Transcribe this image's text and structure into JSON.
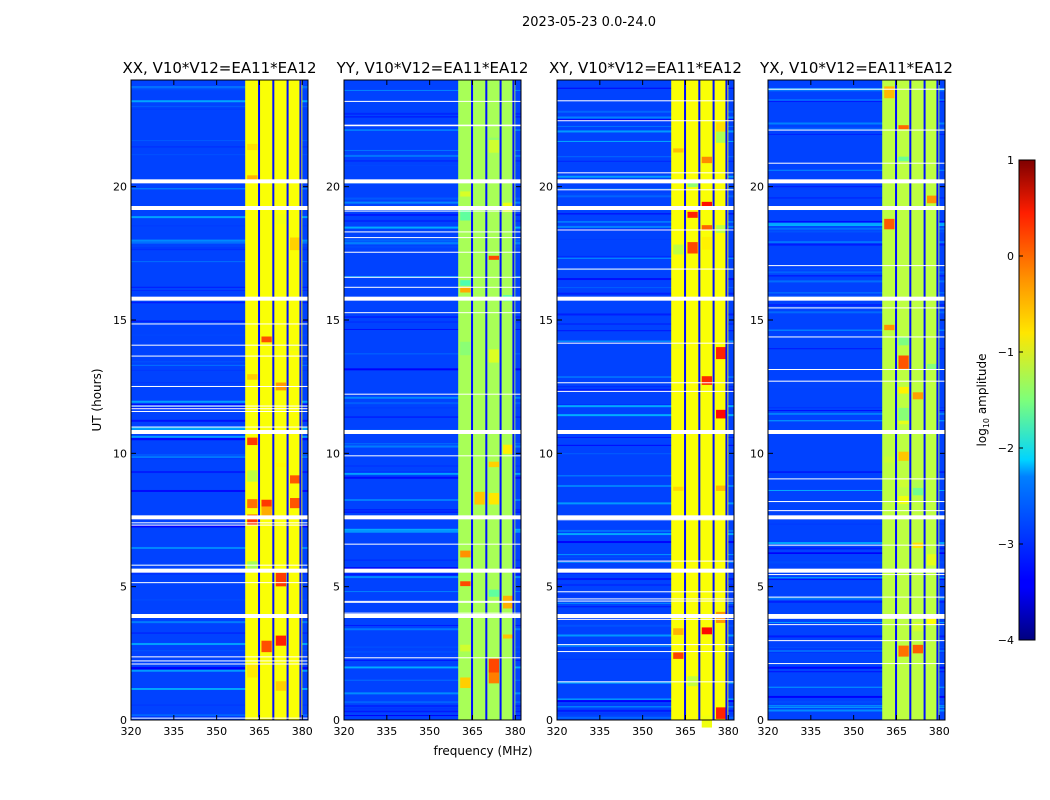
{
  "chart_data": {
    "type": "heatmap",
    "title": "2023-05-23 0.0-24.0",
    "xlabel": "frequency (MHz)",
    "ylabel": "UT (hours)",
    "xlim": [
      320,
      382
    ],
    "ylim": [
      0,
      24
    ],
    "x_ticks": [
      "320",
      "335",
      "350",
      "365",
      "380"
    ],
    "x_tick_values": [
      320,
      335,
      350,
      365,
      380
    ],
    "y_ticks": [
      "0",
      "5",
      "10",
      "15",
      "20"
    ],
    "y_tick_values": [
      0,
      5,
      10,
      15,
      20
    ],
    "panels": [
      {
        "title": "XX, V10*V12=EA11*EA12",
        "band_mhz": [
          360,
          380
        ],
        "band_log_amp": -0.9,
        "peak_log_amp": 0.3
      },
      {
        "title": "YY, V10*V12=EA11*EA12",
        "band_mhz": [
          360,
          380
        ],
        "band_log_amp": -1.3,
        "peak_log_amp": 0.1
      },
      {
        "title": "XY, V10*V12=EA11*EA12",
        "band_mhz": [
          360,
          380
        ],
        "band_log_amp": -0.9,
        "peak_log_amp": 0.4
      },
      {
        "title": "YX, V10*V12=EA11*EA12",
        "band_mhz": [
          360,
          380
        ],
        "band_log_amp": -1.2,
        "peak_log_amp": 0.0
      }
    ],
    "band_channels_mhz": [
      364.5,
      369.5,
      374.5,
      379
    ],
    "flagged_rows_ut": [
      20.2,
      19.2,
      15.8,
      10.8,
      7.6,
      5.6,
      3.9
    ],
    "colorbar": {
      "label": "log",
      "label_sub": "10",
      "label_rest": " amplitude",
      "range": [
        -4,
        1
      ],
      "ticks": [
        "1",
        "0",
        "−1",
        "−2",
        "−3",
        "−4"
      ],
      "tick_values": [
        1,
        0,
        -1,
        -2,
        -3,
        -4
      ]
    }
  }
}
